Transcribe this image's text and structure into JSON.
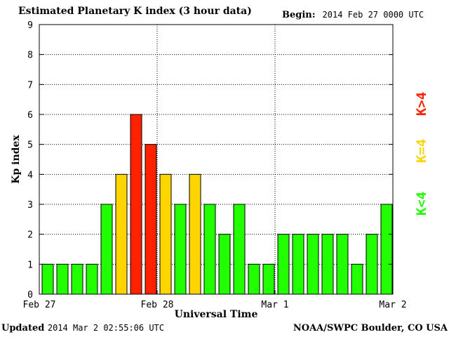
{
  "header": {
    "title": "Estimated Planetary K index (3 hour data)",
    "begin_label": "Begin:",
    "begin_value": "2014 Feb 27 0000 UTC"
  },
  "footer": {
    "updated_label": "Updated",
    "updated_value": "2014 Mar  2 02:55:06 UTC",
    "credit": "NOAA/SWPC Boulder, CO USA"
  },
  "colors": {
    "low": "#22ff00",
    "storm_threshold": "#ffd500",
    "high": "#ff2200"
  },
  "chart_data": {
    "type": "bar",
    "title": "Estimated Planetary K index (3 hour data)",
    "xlabel": "Universal Time",
    "ylabel": "Kp index",
    "ylim": [
      0,
      9
    ],
    "yticks": [
      "0",
      "1",
      "2",
      "3",
      "4",
      "5",
      "6",
      "7",
      "8",
      "9"
    ],
    "xticks": [
      "Feb 27",
      "Feb 28",
      "Mar 1",
      "Mar 2"
    ],
    "grid": true,
    "values": [
      1,
      1,
      1,
      1,
      3,
      4,
      6,
      5,
      4,
      3,
      4,
      3,
      2,
      3,
      1,
      1,
      2,
      2,
      2,
      2,
      2,
      1,
      2,
      3
    ],
    "legend": [
      {
        "label": "K<4",
        "color": "#22ff00"
      },
      {
        "label": "K=4",
        "color": "#ffd500"
      },
      {
        "label": "K>4",
        "color": "#ff2200"
      }
    ]
  }
}
